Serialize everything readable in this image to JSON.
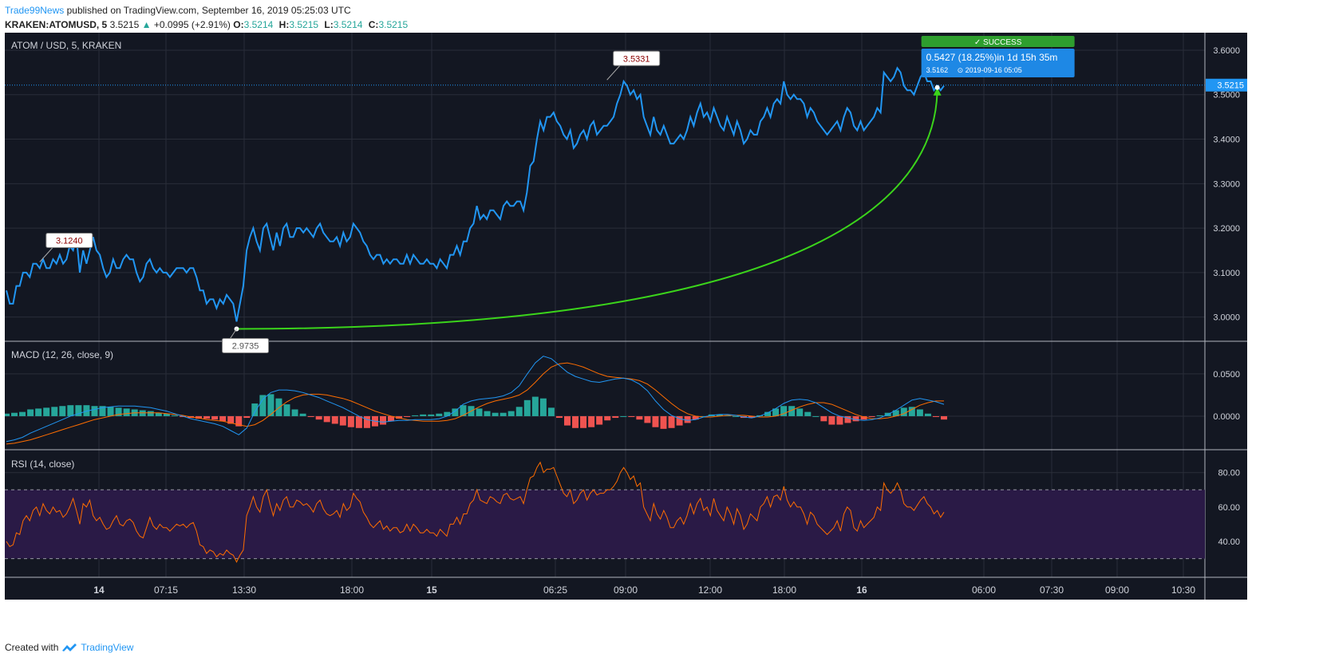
{
  "header": {
    "author": "Trade99News",
    "published": "published on TradingView.com, September 16, 2019 05:25:03 UTC",
    "symbol": "KRAKEN:ATOMUSD, 5",
    "last": "3.5215",
    "arrow": "▲",
    "change": "+0.0995 (+2.91%)",
    "o_label": "O:",
    "o_value": "3.5214",
    "h_label": "H:",
    "h_value": "3.5215",
    "l_label": "L:",
    "l_value": "3.5214",
    "c_label": "C:",
    "c_value": "3.5215"
  },
  "footer": {
    "created_with": "Created with",
    "brand": "TradingView"
  },
  "colors": {
    "background": "#131722",
    "price_line": "#2196f3",
    "projection": "#3bd41b",
    "macd_line": "#2196f3",
    "signal_line": "#ff6d00",
    "hist_up": "#26a69a",
    "hist_down": "#ef5350",
    "rsi_line": "#ff6d00",
    "rsi_band": "#2a1a46",
    "success": "#2e9e2e",
    "info_box": "#1e88e5"
  },
  "chart_data": [
    {
      "type": "line",
      "title": "ATOM / USD, 5, KRAKEN",
      "time_labels": [
        "14",
        "07:15",
        "13:30",
        "18:00",
        "15",
        "06:25",
        "09:00",
        "12:00",
        "18:00",
        "16",
        "06:00",
        "07:30",
        "09:00",
        "10:30"
      ],
      "y_ticks": [
        "3.6000",
        "3.5000",
        "3.4000",
        "3.3000",
        "3.2000",
        "3.1000",
        "3.0000"
      ],
      "ylim": [
        2.96,
        3.625
      ],
      "current_price": "3.5215",
      "series": [
        {
          "values": [
            3.06,
            3.03,
            3.03,
            3.07,
            3.07,
            3.1,
            3.1,
            3.09,
            3.12,
            3.12,
            3.11,
            3.13,
            3.11,
            3.11,
            3.13,
            3.12,
            3.14,
            3.12,
            3.13,
            3.16,
            3.15,
            3.18,
            3.1,
            3.15,
            3.12,
            3.15,
            3.18,
            3.15,
            3.14,
            3.11,
            3.09,
            3.1,
            3.13,
            3.11,
            3.11,
            3.13,
            3.14,
            3.13,
            3.13,
            3.1,
            3.08,
            3.09,
            3.12,
            3.13,
            3.11,
            3.1,
            3.11,
            3.1,
            3.1,
            3.09,
            3.1,
            3.11,
            3.11,
            3.11,
            3.1,
            3.11,
            3.11,
            3.09,
            3.06,
            3.06,
            3.03,
            3.04,
            3.04,
            3.02,
            3.04,
            3.03,
            3.05,
            3.04,
            3.03,
            2.99,
            3.03,
            3.07,
            3.15,
            3.18,
            3.2,
            3.17,
            3.15,
            3.2,
            3.21,
            3.18,
            3.15,
            3.19,
            3.16,
            3.2,
            3.21,
            3.18,
            3.18,
            3.2,
            3.2,
            3.19,
            3.2,
            3.19,
            3.18,
            3.2,
            3.21,
            3.19,
            3.18,
            3.17,
            3.17,
            3.18,
            3.16,
            3.19,
            3.17,
            3.18,
            3.21,
            3.2,
            3.19,
            3.17,
            3.16,
            3.14,
            3.13,
            3.14,
            3.14,
            3.12,
            3.13,
            3.12,
            3.13,
            3.13,
            3.12,
            3.12,
            3.14,
            3.12,
            3.14,
            3.13,
            3.12,
            3.12,
            3.13,
            3.12,
            3.12,
            3.11,
            3.13,
            3.12,
            3.11,
            3.14,
            3.14,
            3.16,
            3.14,
            3.17,
            3.17,
            3.2,
            3.21,
            3.25,
            3.22,
            3.23,
            3.22,
            3.24,
            3.24,
            3.23,
            3.22,
            3.25,
            3.26,
            3.25,
            3.25,
            3.26,
            3.26,
            3.24,
            3.28,
            3.34,
            3.35,
            3.4,
            3.44,
            3.42,
            3.45,
            3.45,
            3.46,
            3.44,
            3.43,
            3.41,
            3.4,
            3.42,
            3.38,
            3.39,
            3.41,
            3.42,
            3.4,
            3.43,
            3.44,
            3.41,
            3.42,
            3.43,
            3.43,
            3.44,
            3.45,
            3.48,
            3.5,
            3.53,
            3.52,
            3.5,
            3.51,
            3.49,
            3.5,
            3.45,
            3.43,
            3.41,
            3.45,
            3.42,
            3.41,
            3.43,
            3.41,
            3.39,
            3.39,
            3.4,
            3.41,
            3.4,
            3.42,
            3.45,
            3.43,
            3.46,
            3.48,
            3.45,
            3.46,
            3.44,
            3.47,
            3.45,
            3.43,
            3.42,
            3.45,
            3.43,
            3.41,
            3.44,
            3.42,
            3.39,
            3.4,
            3.42,
            3.41,
            3.41,
            3.44,
            3.45,
            3.47,
            3.45,
            3.48,
            3.49,
            3.48,
            3.53,
            3.5,
            3.49,
            3.5,
            3.49,
            3.49,
            3.48,
            3.45,
            3.47,
            3.46,
            3.44,
            3.43,
            3.42,
            3.41,
            3.42,
            3.43,
            3.44,
            3.42,
            3.45,
            3.47,
            3.46,
            3.43,
            3.42,
            3.44,
            3.42,
            3.43,
            3.44,
            3.45,
            3.47,
            3.46,
            3.55,
            3.54,
            3.53,
            3.54,
            3.56,
            3.55,
            3.52,
            3.51,
            3.51,
            3.5,
            3.52,
            3.54,
            3.55,
            3.53,
            3.53,
            3.51,
            3.52,
            3.51,
            3.52
          ]
        }
      ],
      "annotations": [
        {
          "label": "3.1240",
          "x": 10,
          "y": 3.124
        },
        {
          "label": "2.9735",
          "x": 69,
          "y": 2.9735
        },
        {
          "label": "3.5331",
          "x": 180,
          "y": 3.5331
        }
      ],
      "projection": {
        "from": {
          "x": 69,
          "y": 2.9735
        },
        "to": {
          "x": 279,
          "y": 3.5162
        },
        "status": "✓ SUCCESS",
        "summary": "0.5427 (18.25%)in 1d 15h 35m",
        "end_price": "3.5162",
        "end_time": "⊙ 2019-09-16  05:05"
      }
    },
    {
      "type": "line",
      "title": "MACD (12, 26, close, 9)",
      "y_ticks": [
        "0.0500",
        "0.0000"
      ],
      "ylim": [
        -0.034,
        0.082
      ],
      "series": [
        {
          "name": "macd",
          "values": [
            -0.03,
            -0.028,
            -0.025,
            -0.02,
            -0.016,
            -0.012,
            -0.008,
            -0.004,
            0.0,
            0.003,
            0.006,
            0.008,
            0.01,
            0.011,
            0.012,
            0.012,
            0.012,
            0.011,
            0.01,
            0.008,
            0.006,
            0.003,
            0.0,
            -0.003,
            -0.005,
            -0.007,
            -0.009,
            -0.012,
            -0.017,
            -0.022,
            -0.014,
            0.005,
            0.02,
            0.028,
            0.031,
            0.031,
            0.03,
            0.028,
            0.025,
            0.022,
            0.018,
            0.014,
            0.01,
            0.005,
            0.0,
            -0.004,
            -0.006,
            -0.007,
            -0.006,
            -0.005,
            -0.005,
            -0.004,
            -0.004,
            -0.004,
            -0.003,
            0.0,
            0.006,
            0.014,
            0.018,
            0.02,
            0.021,
            0.022,
            0.024,
            0.028,
            0.036,
            0.05,
            0.063,
            0.071,
            0.068,
            0.06,
            0.052,
            0.047,
            0.044,
            0.041,
            0.04,
            0.042,
            0.044,
            0.045,
            0.043,
            0.038,
            0.03,
            0.018,
            0.008,
            0.001,
            -0.003,
            -0.005,
            -0.004,
            -0.001,
            0.001,
            0.002,
            0.002,
            0.001,
            -0.001,
            -0.002,
            0.0,
            0.004,
            0.009,
            0.015,
            0.019,
            0.02,
            0.019,
            0.016,
            0.01,
            0.004,
            0.0,
            -0.002,
            -0.004,
            -0.005,
            -0.004,
            -0.002,
            0.002,
            0.007,
            0.013,
            0.019,
            0.021,
            0.019,
            0.017,
            0.014
          ]
        },
        {
          "name": "signal",
          "values": [
            -0.033,
            -0.032,
            -0.03,
            -0.028,
            -0.025,
            -0.022,
            -0.019,
            -0.016,
            -0.013,
            -0.01,
            -0.007,
            -0.004,
            -0.002,
            0.0,
            0.002,
            0.003,
            0.004,
            0.004,
            0.004,
            0.004,
            0.003,
            0.002,
            0.001,
            -0.001,
            -0.002,
            -0.004,
            -0.005,
            -0.006,
            -0.008,
            -0.01,
            -0.012,
            -0.01,
            -0.005,
            0.002,
            0.01,
            0.017,
            0.022,
            0.025,
            0.026,
            0.026,
            0.025,
            0.023,
            0.021,
            0.018,
            0.014,
            0.01,
            0.006,
            0.003,
            0.0,
            -0.002,
            -0.004,
            -0.005,
            -0.006,
            -0.006,
            -0.006,
            -0.005,
            -0.003,
            0.001,
            0.006,
            0.011,
            0.015,
            0.018,
            0.02,
            0.022,
            0.025,
            0.031,
            0.04,
            0.05,
            0.058,
            0.062,
            0.063,
            0.061,
            0.058,
            0.054,
            0.05,
            0.047,
            0.046,
            0.045,
            0.044,
            0.042,
            0.038,
            0.031,
            0.023,
            0.015,
            0.008,
            0.003,
            0.0,
            -0.001,
            -0.001,
            0.0,
            0.001,
            0.001,
            0.001,
            0.0,
            -0.001,
            -0.001,
            0.0,
            0.003,
            0.007,
            0.011,
            0.014,
            0.016,
            0.016,
            0.014,
            0.01,
            0.006,
            0.002,
            -0.001,
            -0.003,
            -0.003,
            -0.002,
            0.0,
            0.003,
            0.008,
            0.013,
            0.016,
            0.018,
            0.018
          ]
        }
      ]
    },
    {
      "type": "line",
      "title": "RSI (14, close)",
      "y_ticks": [
        "80.00",
        "60.00",
        "40.00"
      ],
      "ylim": [
        21,
        91
      ],
      "band": [
        30,
        70
      ],
      "series": [
        {
          "name": "rsi",
          "values": [
            40,
            37,
            38,
            45,
            44,
            52,
            55,
            52,
            58,
            60,
            55,
            62,
            58,
            56,
            60,
            57,
            58,
            54,
            56,
            60,
            65,
            58,
            50,
            62,
            60,
            64,
            55,
            52,
            54,
            50,
            47,
            48,
            52,
            55,
            50,
            49,
            52,
            53,
            51,
            46,
            43,
            42,
            48,
            54,
            49,
            47,
            50,
            48,
            48,
            46,
            48,
            50,
            49,
            50,
            48,
            50,
            51,
            46,
            38,
            37,
            33,
            35,
            34,
            31,
            33,
            32,
            35,
            33,
            32,
            28,
            32,
            35,
            55,
            60,
            66,
            60,
            57,
            66,
            70,
            62,
            55,
            62,
            58,
            64,
            66,
            60,
            60,
            64,
            63,
            61,
            62,
            60,
            57,
            62,
            64,
            59,
            56,
            55,
            56,
            58,
            54,
            62,
            58,
            60,
            68,
            65,
            63,
            57,
            54,
            50,
            48,
            50,
            52,
            47,
            49,
            46,
            48,
            48,
            45,
            46,
            50,
            46,
            50,
            48,
            45,
            45,
            47,
            45,
            45,
            43,
            47,
            45,
            43,
            50,
            50,
            54,
            50,
            56,
            56,
            62,
            64,
            70,
            64,
            63,
            62,
            66,
            65,
            63,
            62,
            67,
            68,
            65,
            64,
            65,
            66,
            62,
            70,
            77,
            78,
            83,
            86,
            80,
            82,
            82,
            83,
            78,
            73,
            68,
            66,
            70,
            62,
            64,
            68,
            70,
            64,
            68,
            70,
            67,
            68,
            68,
            70,
            70,
            72,
            75,
            80,
            83,
            80,
            76,
            78,
            72,
            74,
            60,
            56,
            52,
            62,
            56,
            53,
            58,
            54,
            48,
            48,
            52,
            54,
            50,
            55,
            62,
            56,
            62,
            65,
            58,
            60,
            55,
            65,
            58,
            55,
            52,
            60,
            56,
            50,
            59,
            55,
            47,
            50,
            56,
            54,
            52,
            60,
            62,
            66,
            60,
            66,
            67,
            64,
            72,
            64,
            60,
            63,
            60,
            60,
            56,
            50,
            57,
            55,
            50,
            48,
            46,
            44,
            46,
            48,
            52,
            46,
            56,
            60,
            58,
            48,
            46,
            52,
            48,
            50,
            52,
            54,
            60,
            58,
            74,
            70,
            68,
            70,
            74,
            70,
            62,
            60,
            60,
            58,
            61,
            64,
            66,
            62,
            60,
            56,
            58,
            54,
            57
          ]
        }
      ]
    }
  ]
}
